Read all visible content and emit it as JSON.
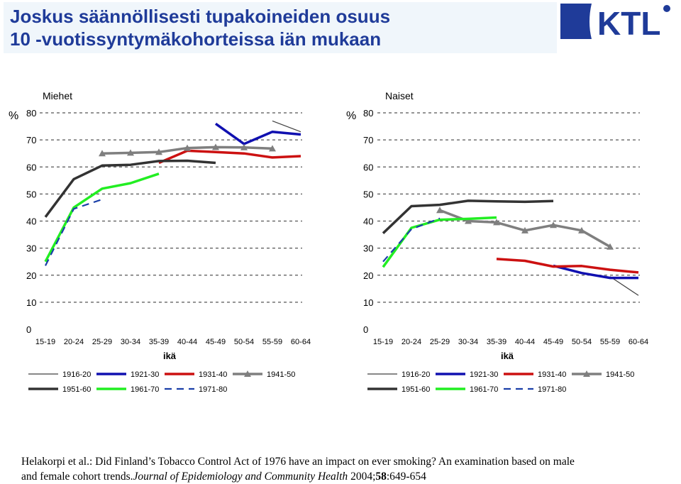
{
  "title": {
    "line1": "Joskus säännöllisesti tupakoineiden osuus",
    "line2": "10 -vuotissyntymäkohorteissa iän mukaan"
  },
  "logo": {
    "text": "KTL"
  },
  "citation": {
    "line1": "Helakorpi et al.: Did Finland’s Tobacco Control Act of 1976 have an impact on ever smoking? An examination based on male",
    "line2_prefix": "and female cohort trends.",
    "journal": "Journal of Epidemiology and Community Health",
    "year": " 2004;",
    "volume": "58",
    "pages": ":649-654"
  },
  "colors": {
    "title": "#1f3b99",
    "s1916": "#404040",
    "s1921": "#1010b0",
    "s1931": "#cc1111",
    "s1941": "#7f7f7f",
    "s1951": "#333333",
    "s1961": "#22ee22",
    "s1971": "#1a3fa8"
  },
  "chart_data": [
    {
      "type": "line",
      "title": "Miehet",
      "ylabel": "%",
      "xlabel": "ikä",
      "ylim": [
        0,
        80
      ],
      "yticks": [
        0,
        10,
        20,
        30,
        40,
        50,
        60,
        70,
        80
      ],
      "grid": true,
      "legend_placement": "bottom",
      "categories": [
        "15-19",
        "20-24",
        "25-29",
        "30-34",
        "35-39",
        "40-44",
        "45-49",
        "50-54",
        "55-59",
        "60-64"
      ],
      "series": [
        {
          "name": "1916-20",
          "values": [
            null,
            null,
            null,
            null,
            null,
            null,
            null,
            null,
            77,
            73
          ]
        },
        {
          "name": "1921-30",
          "values": [
            null,
            null,
            null,
            null,
            null,
            null,
            76,
            68.5,
            73,
            72
          ]
        },
        {
          "name": "1931-40",
          "values": [
            null,
            null,
            null,
            null,
            61.5,
            66,
            65.5,
            65,
            63.5,
            64
          ]
        },
        {
          "name": "1941-50",
          "values": [
            null,
            null,
            65,
            65.2,
            65.5,
            67,
            67.3,
            67.2,
            66.8,
            null
          ]
        },
        {
          "name": "1951-60",
          "values": [
            41.5,
            55.5,
            60.5,
            60.8,
            62.2,
            62.3,
            61.5,
            null,
            null,
            null
          ]
        },
        {
          "name": "1961-70",
          "values": [
            25,
            45,
            52,
            54,
            57.5,
            null,
            null,
            null,
            null,
            null
          ]
        },
        {
          "name": "1971-80",
          "values": [
            23.5,
            44.5,
            48,
            null,
            null,
            null,
            null,
            null,
            null,
            null
          ]
        }
      ]
    },
    {
      "type": "line",
      "title": "Naiset",
      "ylabel": "%",
      "xlabel": "ikä",
      "ylim": [
        0,
        80
      ],
      "yticks": [
        0,
        10,
        20,
        30,
        40,
        50,
        60,
        70,
        80
      ],
      "grid": true,
      "legend_placement": "bottom",
      "categories": [
        "15-19",
        "20-24",
        "25-29",
        "30-34",
        "35-39",
        "40-44",
        "45-49",
        "50-54",
        "55-59",
        "60-64"
      ],
      "series": [
        {
          "name": "1916-20",
          "values": [
            null,
            null,
            null,
            null,
            null,
            null,
            null,
            null,
            19.5,
            12.5
          ]
        },
        {
          "name": "1921-30",
          "values": [
            null,
            null,
            null,
            null,
            null,
            null,
            23.5,
            20.8,
            19,
            19
          ]
        },
        {
          "name": "1931-40",
          "values": [
            null,
            null,
            null,
            null,
            26,
            25.3,
            23.2,
            23.4,
            22,
            21
          ]
        },
        {
          "name": "1941-50",
          "values": [
            null,
            null,
            44,
            40,
            39.5,
            36.5,
            38.5,
            36.5,
            30.5,
            null
          ]
        },
        {
          "name": "1951-60",
          "values": [
            35.5,
            45.5,
            46,
            47.5,
            47.3,
            47.1,
            47.4,
            null,
            null,
            null
          ]
        },
        {
          "name": "1961-70",
          "values": [
            23,
            37.5,
            40.5,
            40.8,
            41.3,
            null,
            null,
            null,
            null,
            null
          ]
        },
        {
          "name": "1971-80",
          "values": [
            25,
            37,
            41,
            null,
            null,
            null,
            null,
            null,
            null,
            null
          ]
        }
      ]
    }
  ]
}
